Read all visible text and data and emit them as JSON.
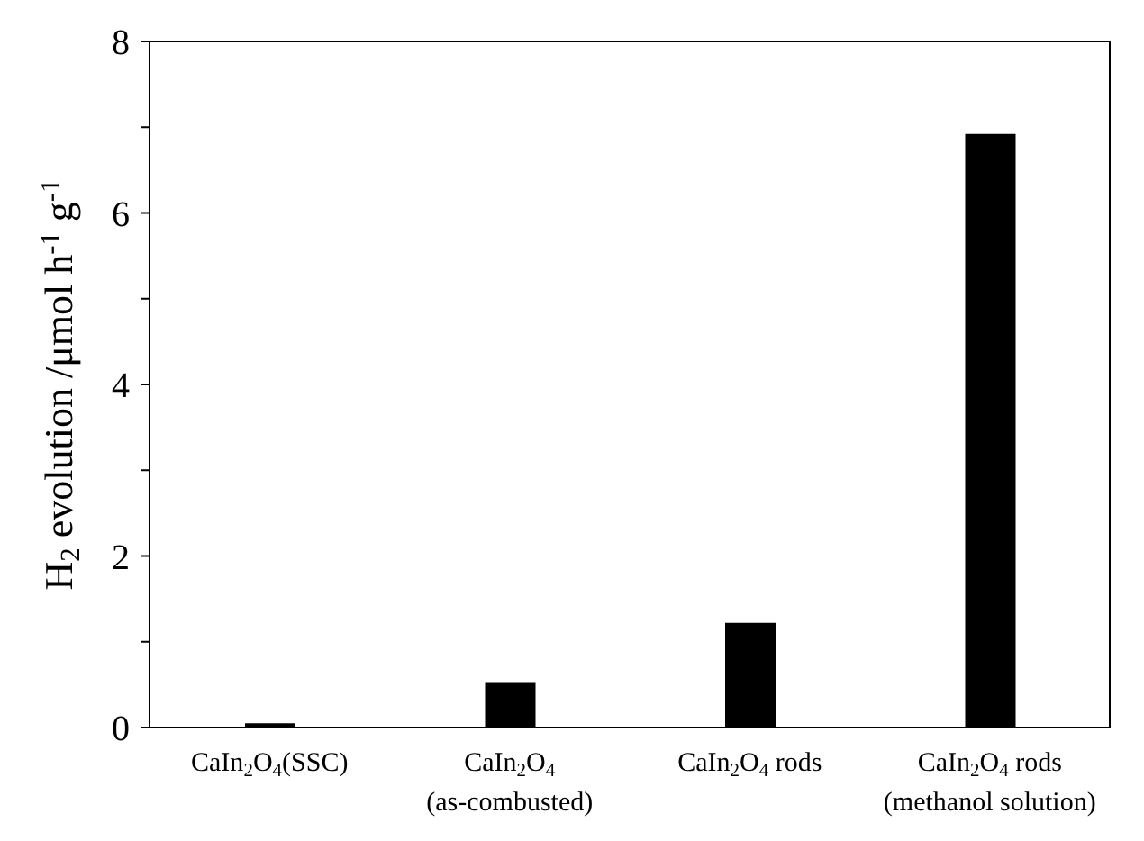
{
  "chart_data": {
    "type": "bar",
    "ylabel": "H$_{2}$ evolution /μmol h$^{-1}$ g$^{-1}$",
    "categories": [
      "CaIn$_{2}$O$_{4}$(SSC)",
      "CaIn$_{2}$O$_{4}$\n(as-combusted)",
      "CaIn$_{2}$O$_{4}$ rods",
      "CaIn$_{2}$O$_{4}$ rods\n(methanol solution)"
    ],
    "values": [
      0.05,
      0.53,
      1.22,
      6.92
    ],
    "color": "#000000",
    "ylim": [
      0,
      8
    ],
    "yticks": [
      0,
      {
        "value": 1,
        "label": null
      },
      2,
      {
        "value": 3,
        "label": null
      },
      4,
      {
        "value": 5,
        "label": null
      },
      6,
      {
        "value": 7,
        "label": null
      },
      8
    ],
    "grid": false,
    "legend": false
  }
}
